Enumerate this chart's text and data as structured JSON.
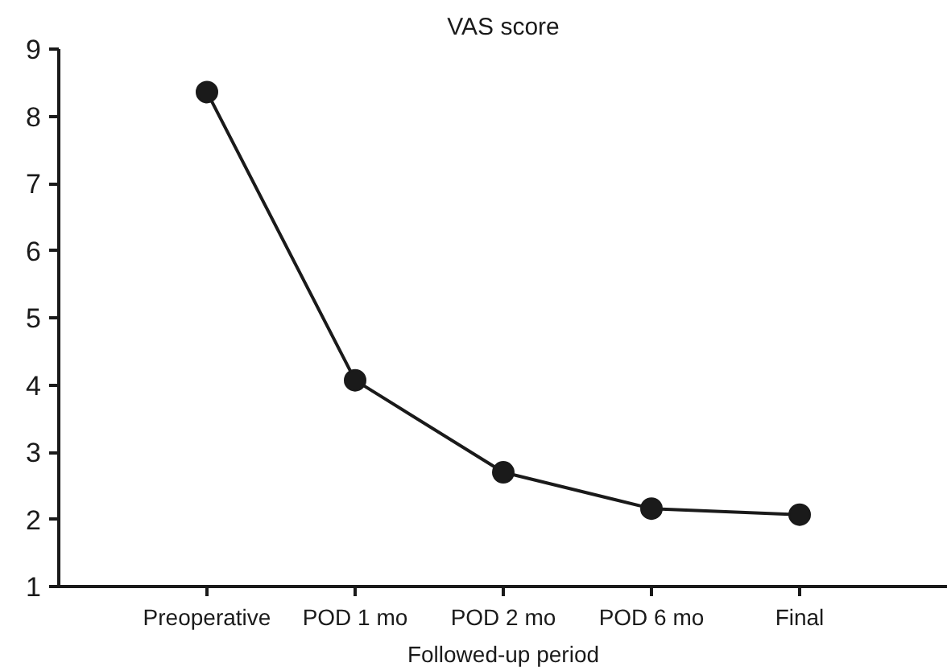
{
  "chart_data": {
    "type": "line",
    "title": "VAS score",
    "xlabel": "Followed-up period",
    "categories": [
      "Preoperative",
      "POD 1 mo",
      "POD 2 mo",
      "POD 6 mo",
      "Final"
    ],
    "series": [
      {
        "color": "#1a1a1a",
        "values": [
          8.36,
          4.07,
          2.7,
          2.16,
          2.07
        ]
      }
    ],
    "ylim": [
      1,
      9
    ],
    "yticks": [
      1,
      2,
      3,
      4,
      5,
      6,
      7,
      8,
      9
    ],
    "marker": "circle",
    "line_style": "solid",
    "grid": false
  }
}
